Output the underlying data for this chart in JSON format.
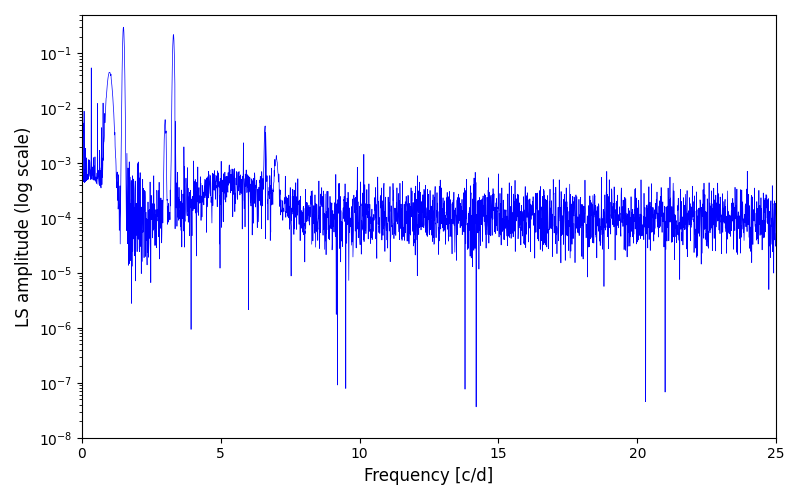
{
  "title": "",
  "xlabel": "Frequency [c/d]",
  "ylabel": "LS amplitude (log scale)",
  "xlim": [
    0,
    25
  ],
  "ylim": [
    1e-08,
    0.5
  ],
  "yscale": "log",
  "line_color": "#0000ff",
  "line_width": 0.5,
  "figsize": [
    8.0,
    5.0
  ],
  "dpi": 100,
  "background_color": "#ffffff",
  "peak1_freq": 1.5,
  "peak1_amp": 0.3,
  "peak2_freq": 3.3,
  "peak2_amp": 0.22,
  "noise_floor_log_mean": -4.0,
  "noise_floor_log_std": 0.7,
  "num_points": 3000,
  "freq_max": 25.0,
  "random_seed": 17
}
